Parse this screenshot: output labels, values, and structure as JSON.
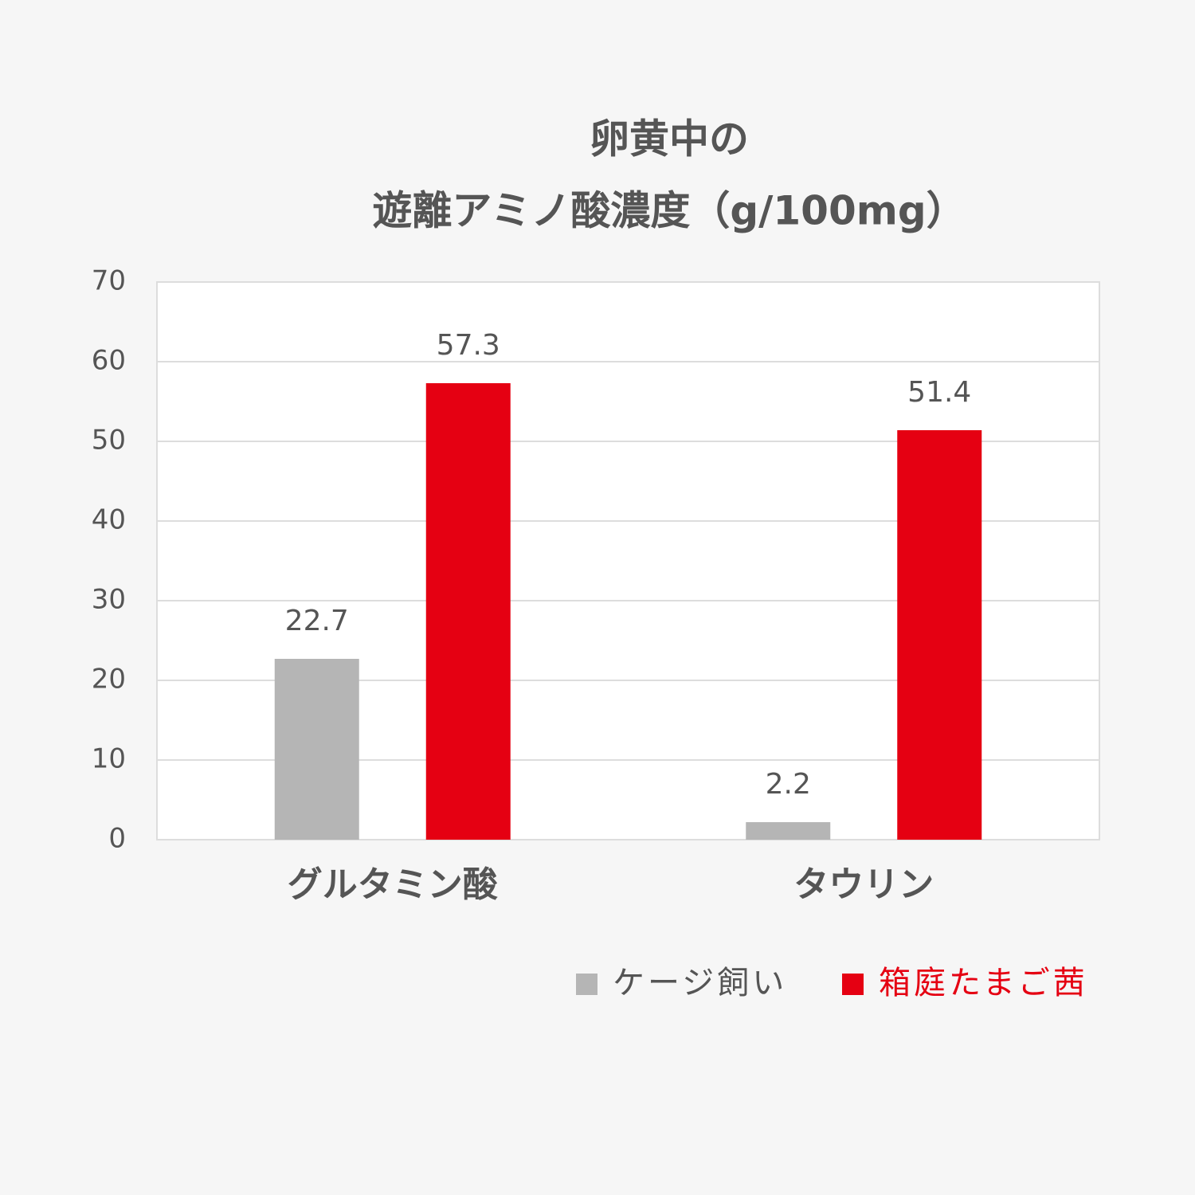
{
  "chart_data": {
    "type": "bar",
    "title": [
      "卵黄中の",
      "遊離アミノ酸濃度（g/100mg）"
    ],
    "categories": [
      "グルタミン酸",
      "タウリン"
    ],
    "series": [
      {
        "name": "ケージ飼い",
        "color": "#b5b5b5",
        "values": [
          22.7,
          2.2
        ]
      },
      {
        "name": "箱庭たまご茜",
        "color": "#e50012",
        "values": [
          57.3,
          51.4
        ]
      }
    ],
    "ylim": [
      0,
      70
    ],
    "yticks": [
      0,
      10,
      20,
      30,
      40,
      50,
      60,
      70
    ],
    "grid": true,
    "legend": "bottom"
  }
}
